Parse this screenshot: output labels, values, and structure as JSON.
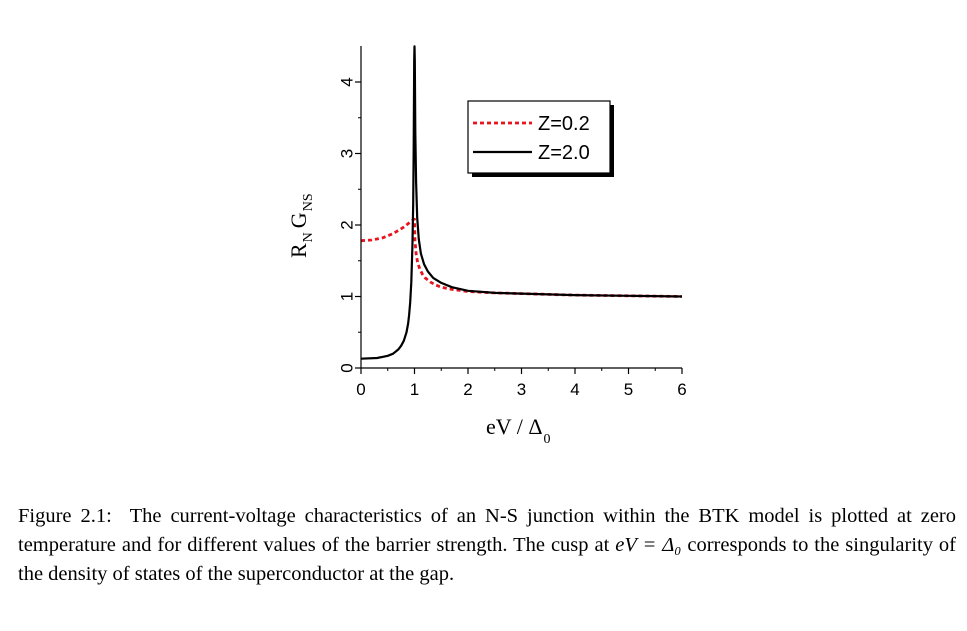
{
  "chart_data": {
    "type": "line",
    "xlabel": {
      "main": "eV / Δ",
      "sub": "0"
    },
    "ylabel": {
      "r": "R",
      "r_sub": "N",
      "g": "G",
      "g_sub": "NS"
    },
    "xlim": [
      0,
      6
    ],
    "ylim": [
      0,
      4.5
    ],
    "xticks": [
      0,
      1,
      2,
      3,
      4,
      5,
      6
    ],
    "yticks": [
      0,
      1,
      2,
      3,
      4
    ],
    "grid": false,
    "legend_placement": "top-right",
    "series": [
      {
        "name": "Z=0.2",
        "color": "#e8141e",
        "style": "dashed",
        "x": [
          0,
          0.2,
          0.4,
          0.6,
          0.8,
          0.9,
          0.95,
          0.99,
          1.0,
          1.01,
          1.03,
          1.06,
          1.1,
          1.15,
          1.2,
          1.3,
          1.4,
          1.5,
          1.7,
          2.0,
          2.5,
          3.0,
          3.5,
          4.0,
          5.0,
          6.0
        ],
        "values": [
          1.78,
          1.79,
          1.82,
          1.88,
          1.97,
          2.03,
          2.06,
          2.08,
          2.08,
          1.78,
          1.6,
          1.47,
          1.38,
          1.31,
          1.26,
          1.2,
          1.16,
          1.13,
          1.1,
          1.07,
          1.05,
          1.04,
          1.03,
          1.02,
          1.01,
          1.0
        ]
      },
      {
        "name": "Z=2.0",
        "color": "#000000",
        "style": "solid",
        "x": [
          0,
          0.3,
          0.5,
          0.6,
          0.7,
          0.75,
          0.8,
          0.85,
          0.88,
          0.9,
          0.92,
          0.94,
          0.96,
          0.975,
          0.985,
          0.995,
          1.0,
          1.005,
          1.015,
          1.03,
          1.05,
          1.08,
          1.12,
          1.18,
          1.25,
          1.35,
          1.5,
          1.7,
          2.0,
          2.5,
          3.0,
          3.5,
          4.0,
          5.0,
          6.0
        ],
        "values": [
          0.13,
          0.14,
          0.17,
          0.2,
          0.26,
          0.31,
          0.38,
          0.5,
          0.62,
          0.74,
          0.92,
          1.2,
          1.7,
          2.3,
          3.1,
          4.3,
          4.5,
          4.3,
          3.3,
          2.6,
          2.1,
          1.8,
          1.6,
          1.45,
          1.35,
          1.26,
          1.19,
          1.13,
          1.08,
          1.05,
          1.04,
          1.03,
          1.02,
          1.01,
          1.0
        ]
      }
    ]
  },
  "caption": {
    "label": "Figure 2.1:",
    "text_part1": "The current-voltage characteristics of an N-S junction within the BTK model is plotted at zero temperature and for different values of the barrier strength. The cusp at ",
    "math": "eV = Δ₀",
    "text_part2": " corresponds to the singularity of the density of states of the superconductor at the gap."
  }
}
